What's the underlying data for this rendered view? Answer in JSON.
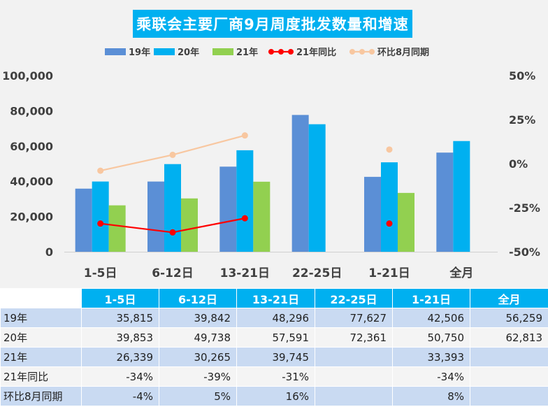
{
  "title": "乘联会主要厂商9月周度批发数量和增速",
  "colors": {
    "s19": "#5b8fd6",
    "s20": "#00b0f0",
    "s21": "#92d050",
    "yoy": "#ff0000",
    "mom": "#f8c7a0",
    "header": "#00b0f0"
  },
  "chart_data": {
    "type": "bar",
    "title": "乘联会主要厂商9月周度批发数量和增速",
    "categories": [
      "1-5日",
      "6-12日",
      "13-21日",
      "22-25日",
      "1-21日",
      "全月"
    ],
    "series": [
      {
        "name": "19年",
        "kind": "bar",
        "values": [
          35815,
          39842,
          48296,
          77627,
          42506,
          56259
        ]
      },
      {
        "name": "20年",
        "kind": "bar",
        "values": [
          39853,
          49738,
          57591,
          72361,
          50750,
          62813
        ]
      },
      {
        "name": "21年",
        "kind": "bar",
        "values": [
          26339,
          30265,
          39745,
          null,
          33393,
          null
        ]
      },
      {
        "name": "21年同比",
        "kind": "line",
        "axis": "right",
        "values": [
          -34,
          -39,
          -31,
          null,
          -34,
          null
        ]
      },
      {
        "name": "环比8月同期",
        "kind": "line",
        "axis": "right",
        "values": [
          -4,
          5,
          16,
          null,
          8,
          null
        ]
      }
    ],
    "ylim": [
      0,
      100000
    ],
    "y2lim": [
      -50,
      50
    ],
    "y_ticks": [
      "0",
      "20,000",
      "40,000",
      "60,000",
      "80,000",
      "100,000"
    ],
    "y2_ticks": [
      "-50%",
      "-25%",
      "0%",
      "25%",
      "50%"
    ],
    "legend": "top",
    "grid": false
  },
  "table": {
    "columns": [
      "1-5日",
      "6-12日",
      "13-21日",
      "22-25日",
      "1-21日",
      "全月"
    ],
    "rows": [
      {
        "label": "19年",
        "cells": [
          "35,815",
          "39,842",
          "48,296",
          "77,627",
          "42,506",
          "56,259"
        ]
      },
      {
        "label": "20年",
        "cells": [
          "39,853",
          "49,738",
          "57,591",
          "72,361",
          "50,750",
          "62,813"
        ]
      },
      {
        "label": "21年",
        "cells": [
          "26,339",
          "30,265",
          "39,745",
          "",
          "33,393",
          ""
        ]
      },
      {
        "label": "21年同比",
        "cells": [
          "-34%",
          "-39%",
          "-31%",
          "",
          "-34%",
          ""
        ]
      },
      {
        "label": "环比8月同期",
        "cells": [
          "-4%",
          "5%",
          "16%",
          "",
          "8%",
          ""
        ]
      }
    ]
  }
}
